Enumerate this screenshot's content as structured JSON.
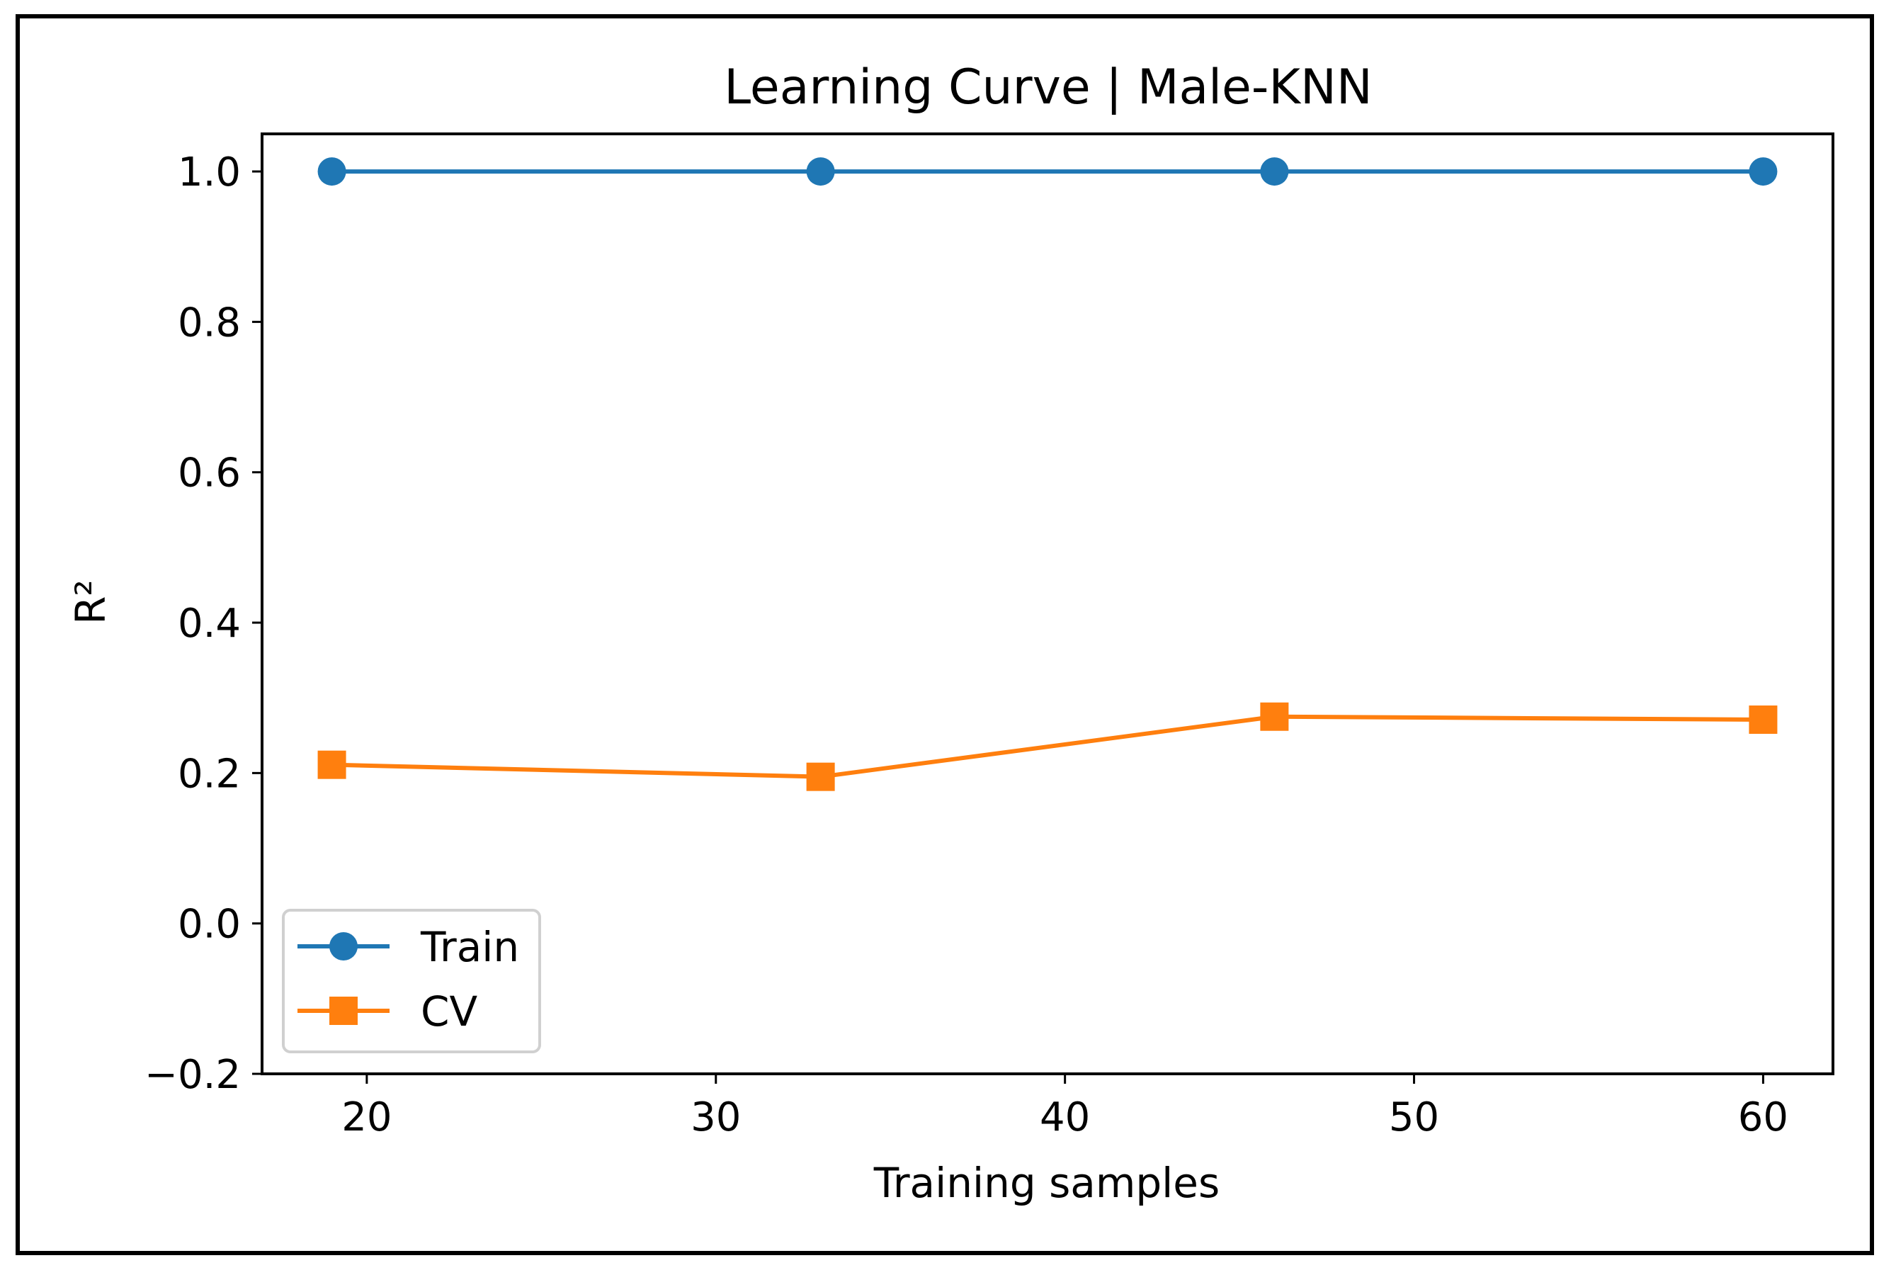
{
  "chart_data": {
    "type": "line",
    "title": "Learning Curve | Male-KNN",
    "xlabel": "Training samples",
    "ylabel": "R²",
    "xlim": [
      17,
      62
    ],
    "ylim": [
      -0.2,
      1.05
    ],
    "xticks": [
      20,
      30,
      40,
      50,
      60
    ],
    "xtick_labels": [
      "20",
      "30",
      "40",
      "50",
      "60"
    ],
    "yticks": [
      -0.2,
      0.0,
      0.2,
      0.4,
      0.6,
      0.8,
      1.0
    ],
    "ytick_labels": [
      "−0.2",
      "0.0",
      "0.2",
      "0.4",
      "0.6",
      "0.8",
      "1.0"
    ],
    "grid": false,
    "legend_position": "lower-left",
    "x": [
      19,
      33,
      46,
      60
    ],
    "series": [
      {
        "name": "Train",
        "values": [
          1.0,
          1.0,
          1.0,
          1.0
        ],
        "color": "#1f77b4",
        "marker": "circle"
      },
      {
        "name": "CV",
        "values": [
          0.211,
          0.195,
          0.275,
          0.271
        ],
        "color": "#ff7f0e",
        "marker": "square"
      }
    ]
  }
}
